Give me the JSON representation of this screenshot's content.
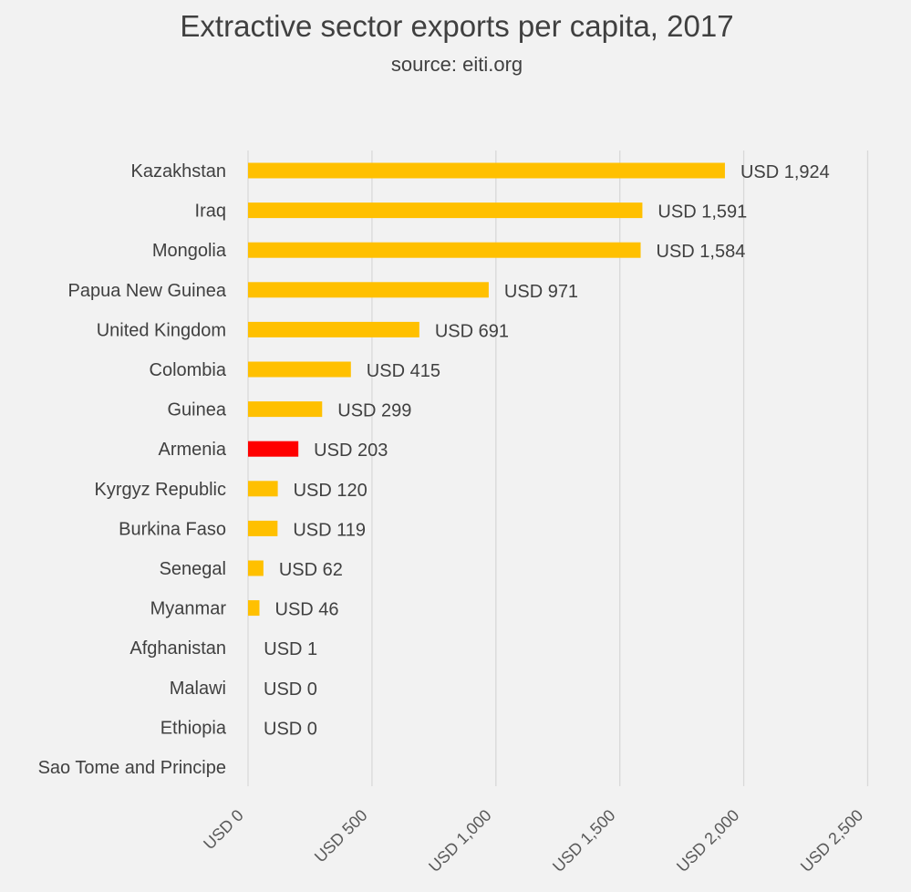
{
  "chart_data": {
    "type": "bar",
    "orientation": "horizontal",
    "title": "Extractive sector exports per capita, 2017",
    "subtitle": "source: eiti.org",
    "categories": [
      "Kazakhstan",
      "Iraq",
      "Mongolia",
      "Papua New Guinea",
      "United Kingdom",
      "Colombia",
      "Guinea",
      "Armenia",
      "Kyrgyz Republic",
      "Burkina Faso",
      "Senegal",
      "Myanmar",
      "Afghanistan",
      "Malawi",
      "Ethiopia",
      "Sao Tome and Principe"
    ],
    "values": [
      1924,
      1591,
      1584,
      971,
      691,
      415,
      299,
      203,
      120,
      119,
      62,
      46,
      1,
      0,
      0,
      null
    ],
    "data_labels": [
      "USD 1,924",
      "USD 1,591",
      "USD 1,584",
      "USD 971",
      "USD 691",
      "USD 415",
      "USD 299",
      "USD 203",
      "USD 120",
      "USD 119",
      "USD 62",
      "USD 46",
      "USD 1",
      "USD 0",
      "USD 0",
      ""
    ],
    "highlight_category": "Armenia",
    "xlim": [
      0,
      2500
    ],
    "x_ticks": [
      0,
      500,
      1000,
      1500,
      2000,
      2500
    ],
    "x_tick_labels": [
      "USD 0",
      "USD 500",
      "USD 1,000",
      "USD 1,500",
      "USD 2,000",
      "USD 2,500"
    ],
    "grid": true,
    "legend": "none",
    "colors": {
      "bar": "#ffc000",
      "highlight": "#ff0000",
      "background": "#f2f2f2",
      "grid": "#d9d9d9",
      "text": "#404040"
    }
  }
}
